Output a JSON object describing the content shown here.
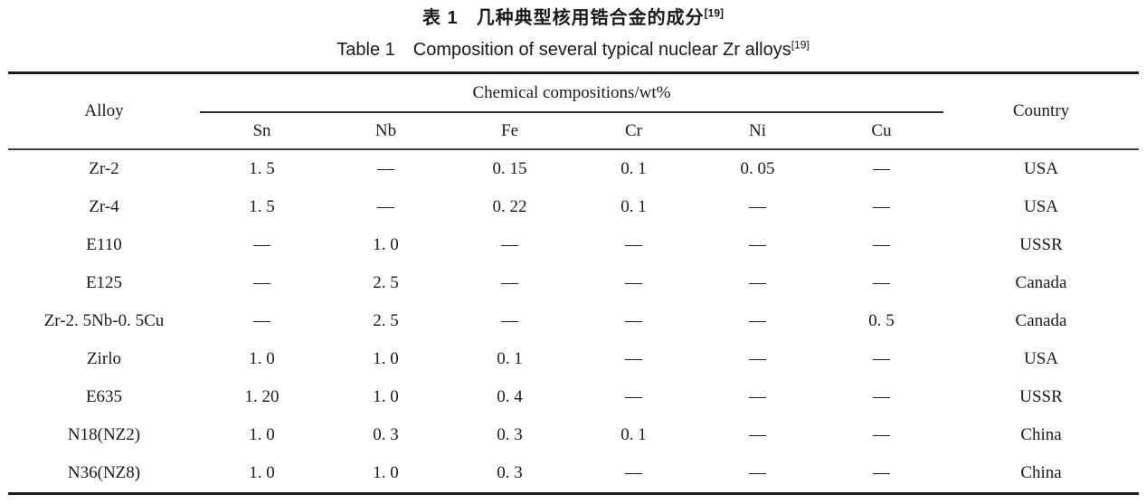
{
  "titles": {
    "zh_label": "表 1",
    "zh_text": "几种典型核用锆合金的成分",
    "en_label": "Table 1",
    "en_text": "Composition of several typical nuclear Zr alloys",
    "ref": "[19]"
  },
  "table": {
    "header": {
      "alloy": "Alloy",
      "group": "Chemical compositions/wt%",
      "elements": [
        "Sn",
        "Nb",
        "Fe",
        "Cr",
        "Ni",
        "Cu"
      ],
      "country": "Country"
    },
    "rows": [
      {
        "alloy": "Zr-2",
        "values": [
          "1. 5",
          "—",
          "0. 15",
          "0. 1",
          "0. 05",
          "—"
        ],
        "country": "USA"
      },
      {
        "alloy": "Zr-4",
        "values": [
          "1. 5",
          "—",
          "0. 22",
          "0. 1",
          "—",
          "—"
        ],
        "country": "USA"
      },
      {
        "alloy": "E110",
        "values": [
          "—",
          "1. 0",
          "—",
          "—",
          "—",
          "—"
        ],
        "country": "USSR"
      },
      {
        "alloy": "E125",
        "values": [
          "—",
          "2. 5",
          "—",
          "—",
          "—",
          "—"
        ],
        "country": "Canada"
      },
      {
        "alloy": "Zr-2. 5Nb-0. 5Cu",
        "values": [
          "—",
          "2. 5",
          "—",
          "—",
          "—",
          "0. 5"
        ],
        "country": "Canada"
      },
      {
        "alloy": "Zirlo",
        "values": [
          "1. 0",
          "1. 0",
          "0. 1",
          "—",
          "—",
          "—"
        ],
        "country": "USA"
      },
      {
        "alloy": "E635",
        "values": [
          "1. 20",
          "1. 0",
          "0. 4",
          "—",
          "—",
          "—"
        ],
        "country": "USSR"
      },
      {
        "alloy": "N18(NZ2)",
        "values": [
          "1. 0",
          "0. 3",
          "0. 3",
          "0. 1",
          "—",
          "—"
        ],
        "country": "China"
      },
      {
        "alloy": "N36(NZ8)",
        "values": [
          "1. 0",
          "1. 0",
          "0. 3",
          "—",
          "—",
          "—"
        ],
        "country": "China"
      }
    ]
  }
}
